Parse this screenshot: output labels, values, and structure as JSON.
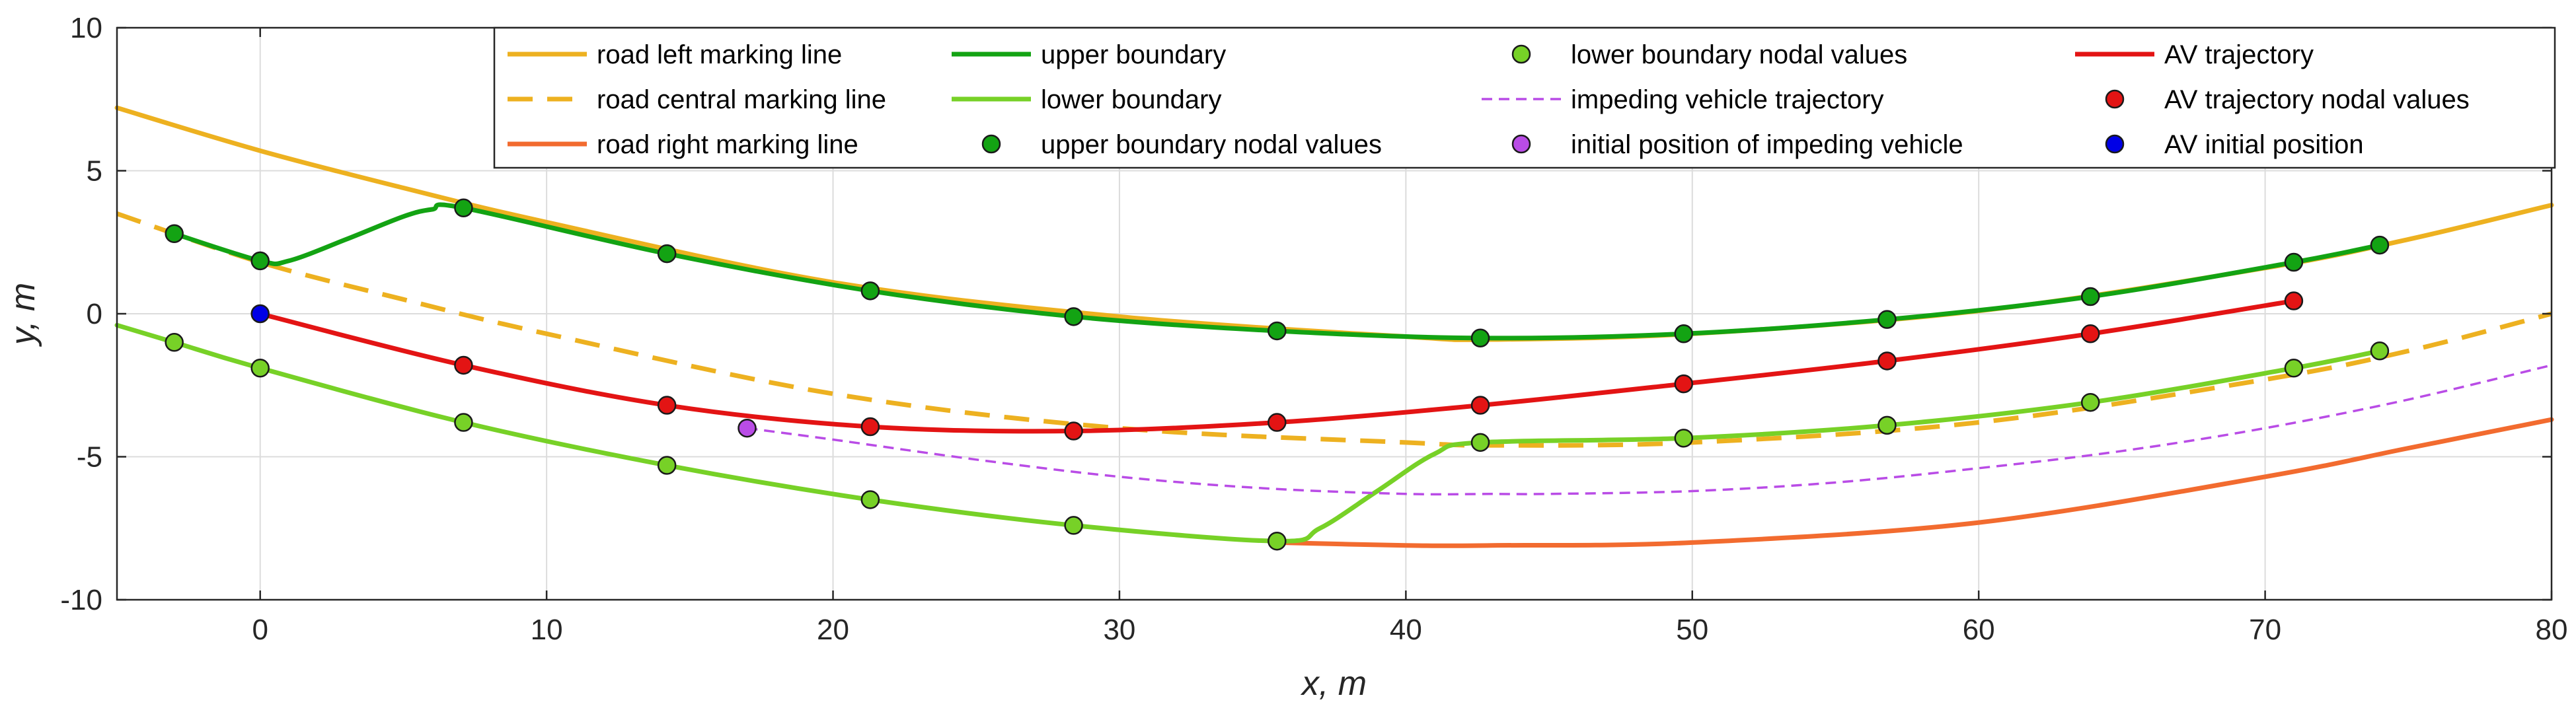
{
  "colors": {
    "road_left": "#EDB120",
    "road_central": "#EDB120",
    "road_right": "#F26B2F",
    "upper_boundary": "#13A313",
    "lower_boundary": "#77D127",
    "upper_nodes": "#13A313",
    "lower_nodes": "#77D127",
    "impeding_traj": "#B94CE6",
    "impeding_init": "#B94CE6",
    "av_traj": "#E31414",
    "av_nodes": "#E31414",
    "av_init": "#0000E6"
  },
  "chart_data": {
    "type": "line",
    "xlabel": "x, m",
    "ylabel": "y, m",
    "xlim": [
      -5,
      80
    ],
    "ylim": [
      -10,
      10
    ],
    "xticks": [
      0,
      10,
      20,
      30,
      40,
      50,
      60,
      70,
      80
    ],
    "yticks": [
      -10,
      -5,
      0,
      5,
      10
    ],
    "xtick_labels": [
      "0",
      "10",
      "20",
      "30",
      "40",
      "50",
      "60",
      "70",
      "80"
    ],
    "ytick_labels": [
      "-10",
      "-5",
      "0",
      "5",
      "10"
    ],
    "grid": true,
    "legend_position": "top",
    "legend": [
      {
        "key": "road_left",
        "label": "road left marking line"
      },
      {
        "key": "road_central",
        "label": "road central marking line"
      },
      {
        "key": "road_right",
        "label": "road right marking line"
      },
      {
        "key": "upper_boundary",
        "label": "upper boundary"
      },
      {
        "key": "lower_boundary",
        "label": "lower boundary"
      },
      {
        "key": "upper_nodes",
        "label": "upper boundary nodal values"
      },
      {
        "key": "lower_nodes",
        "label": "lower boundary nodal values"
      },
      {
        "key": "impeding_traj",
        "label": "impeding vehicle trajectory"
      },
      {
        "key": "impeding_init",
        "label": "initial position of impeding vehicle"
      },
      {
        "key": "av_traj",
        "label": "AV trajectory"
      },
      {
        "key": "av_nodes",
        "label": "AV trajectory nodal values"
      },
      {
        "key": "av_init",
        "label": "AV initial position"
      }
    ],
    "series": {
      "road_left": {
        "x": [
          -5,
          0,
          5,
          10,
          20,
          30,
          40,
          43,
          50,
          60,
          70,
          75,
          80
        ],
        "y": [
          7.2,
          5.7,
          4.4,
          3.2,
          1.1,
          -0.1,
          -0.8,
          -0.9,
          -0.7,
          0.1,
          1.6,
          2.6,
          3.8
        ]
      },
      "road_central": {
        "x": [
          -5,
          0,
          5,
          10,
          20,
          30,
          40,
          43,
          50,
          60,
          70,
          75,
          80
        ],
        "y": [
          3.5,
          1.8,
          0.5,
          -0.7,
          -2.8,
          -4.0,
          -4.5,
          -4.6,
          -4.5,
          -3.8,
          -2.3,
          -1.3,
          0.0
        ]
      },
      "road_right": {
        "x": [
          35.5,
          40,
          43,
          50,
          60,
          70,
          75,
          80
        ],
        "y": [
          -8.0,
          -8.1,
          -8.1,
          -8.0,
          -7.3,
          -5.7,
          -4.7,
          -3.7
        ]
      },
      "upper_boundary": {
        "x": [
          -3,
          0,
          1,
          3,
          5,
          6,
          7.1,
          14.2,
          21.3,
          28.4,
          35.5,
          42.6,
          49.7,
          56.8,
          63.9,
          71,
          74
        ],
        "y": [
          2.8,
          1.85,
          1.85,
          2.6,
          3.4,
          3.65,
          3.7,
          2.1,
          0.8,
          -0.1,
          -0.6,
          -0.85,
          -0.7,
          -0.2,
          0.6,
          1.8,
          2.4
        ]
      },
      "lower_boundary": {
        "x": [
          -5,
          -3,
          0,
          7.1,
          14.2,
          21.3,
          28.4,
          35.5,
          37,
          39,
          41,
          42.6,
          49.7,
          56.8,
          63.9,
          71,
          74
        ],
        "y": [
          -0.4,
          -1.0,
          -1.9,
          -3.8,
          -5.3,
          -6.5,
          -7.4,
          -7.95,
          -7.5,
          -6.2,
          -4.9,
          -4.5,
          -4.35,
          -3.9,
          -3.1,
          -1.9,
          -1.3
        ]
      },
      "upper_nodes": {
        "x": [
          -3,
          0,
          7.1,
          14.2,
          21.3,
          28.4,
          35.5,
          42.6,
          49.7,
          56.8,
          63.9,
          71,
          74
        ],
        "y": [
          2.8,
          1.85,
          3.7,
          2.1,
          0.8,
          -0.1,
          -0.6,
          -0.85,
          -0.7,
          -0.2,
          0.6,
          1.8,
          2.4
        ]
      },
      "lower_nodes": {
        "x": [
          -3,
          0,
          7.1,
          14.2,
          21.3,
          28.4,
          35.5,
          42.6,
          49.7,
          56.8,
          63.9,
          71,
          74
        ],
        "y": [
          -1.0,
          -1.9,
          -3.8,
          -5.3,
          -6.5,
          -7.4,
          -7.95,
          -4.5,
          -4.35,
          -3.9,
          -3.1,
          -1.9,
          -1.3
        ]
      },
      "impeding_traj": {
        "x": [
          17,
          20,
          25,
          30,
          35,
          40,
          43,
          45,
          50,
          55,
          60,
          65,
          70,
          75,
          80
        ],
        "y": [
          -4.0,
          -4.4,
          -5.1,
          -5.7,
          -6.1,
          -6.3,
          -6.3,
          -6.3,
          -6.2,
          -5.9,
          -5.4,
          -4.8,
          -4.0,
          -3.0,
          -1.8
        ]
      },
      "impeding_init": {
        "x": [
          17
        ],
        "y": [
          -4.0
        ]
      },
      "av_traj": {
        "x": [
          0,
          7.1,
          14.2,
          21.3,
          28.4,
          35.5,
          42.6,
          49.7,
          56.8,
          63.9,
          71
        ],
        "y": [
          0.0,
          -1.8,
          -3.2,
          -3.95,
          -4.1,
          -3.8,
          -3.2,
          -2.45,
          -1.65,
          -0.7,
          0.45
        ]
      },
      "av_nodes": {
        "x": [
          7.1,
          14.2,
          21.3,
          28.4,
          35.5,
          42.6,
          49.7,
          56.8,
          63.9,
          71
        ],
        "y": [
          -1.8,
          -3.2,
          -3.95,
          -4.1,
          -3.8,
          -3.2,
          -2.45,
          -1.65,
          -0.7,
          0.45
        ]
      },
      "av_init": {
        "x": [
          0
        ],
        "y": [
          0.0
        ]
      }
    }
  }
}
